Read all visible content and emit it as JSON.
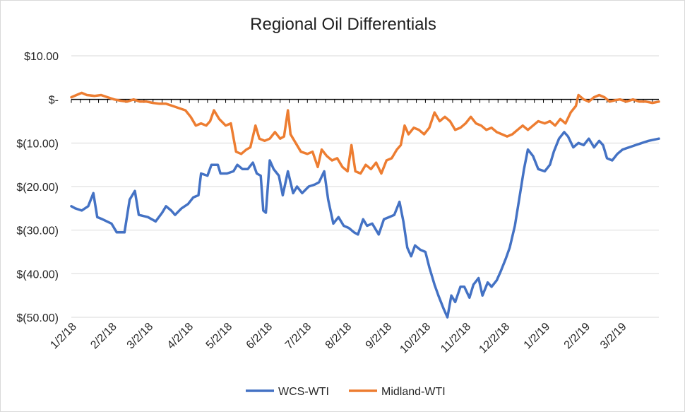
{
  "chart_data": {
    "type": "line",
    "title": "Regional Oil Differentials",
    "xlabel": "",
    "ylabel": "",
    "ylim": [
      -50,
      10
    ],
    "y_ticks": [
      {
        "value": 10,
        "label": "$10.00"
      },
      {
        "value": 0,
        "label": "$-"
      },
      {
        "value": -10,
        "label": "$(10.00)"
      },
      {
        "value": -20,
        "label": "$(20.00)"
      },
      {
        "value": -30,
        "label": "$(30.00)"
      },
      {
        "value": -40,
        "label": "$(40.00)"
      },
      {
        "value": -50,
        "label": "$(50.00)"
      }
    ],
    "x_tick_labels": [
      "1/2/18",
      "2/2/18",
      "3/2/18",
      "4/2/18",
      "5/2/18",
      "6/2/18",
      "7/2/18",
      "8/2/18",
      "9/2/18",
      "10/2/18",
      "11/2/18",
      "12/2/18",
      "1/2/19",
      "2/2/19",
      "3/2/19"
    ],
    "x_tick_dates": [
      "2018-01-02",
      "2018-02-02",
      "2018-03-02",
      "2018-04-02",
      "2018-05-02",
      "2018-06-02",
      "2018-07-02",
      "2018-08-02",
      "2018-09-02",
      "2018-10-02",
      "2018-11-02",
      "2018-12-02",
      "2019-01-02",
      "2019-02-02",
      "2019-03-02"
    ],
    "xlim": [
      "2018-01-02",
      "2019-03-31"
    ],
    "grid": "horizontal",
    "legend": "bottom",
    "series": [
      {
        "name": "WCS-WTI",
        "color": "#4472c4",
        "points": [
          [
            "2018-01-02",
            -24.5
          ],
          [
            "2018-01-05",
            -25
          ],
          [
            "2018-01-10",
            -25.5
          ],
          [
            "2018-01-15",
            -24.5
          ],
          [
            "2018-01-19",
            -21.5
          ],
          [
            "2018-01-22",
            -27
          ],
          [
            "2018-01-26",
            -27.5
          ],
          [
            "2018-02-02",
            -28.5
          ],
          [
            "2018-02-06",
            -30.5
          ],
          [
            "2018-02-12",
            -30.5
          ],
          [
            "2018-02-16",
            -23
          ],
          [
            "2018-02-20",
            -21
          ],
          [
            "2018-02-23",
            -26.5
          ],
          [
            "2018-03-02",
            -27
          ],
          [
            "2018-03-08",
            -28
          ],
          [
            "2018-03-13",
            -26
          ],
          [
            "2018-03-16",
            -24.5
          ],
          [
            "2018-03-20",
            -25.5
          ],
          [
            "2018-03-23",
            -26.5
          ],
          [
            "2018-03-28",
            -25
          ],
          [
            "2018-04-02",
            -24
          ],
          [
            "2018-04-06",
            -22.5
          ],
          [
            "2018-04-10",
            -22
          ],
          [
            "2018-04-12",
            -17
          ],
          [
            "2018-04-17",
            -17.5
          ],
          [
            "2018-04-20",
            -15
          ],
          [
            "2018-04-25",
            -15
          ],
          [
            "2018-04-27",
            -17
          ],
          [
            "2018-05-02",
            -17
          ],
          [
            "2018-05-07",
            -16.5
          ],
          [
            "2018-05-10",
            -15
          ],
          [
            "2018-05-14",
            -16
          ],
          [
            "2018-05-18",
            -16
          ],
          [
            "2018-05-22",
            -14.5
          ],
          [
            "2018-05-25",
            -17
          ],
          [
            "2018-05-28",
            -17.5
          ],
          [
            "2018-05-30",
            -25.5
          ],
          [
            "2018-06-01",
            -26
          ],
          [
            "2018-06-04",
            -14
          ],
          [
            "2018-06-07",
            -16
          ],
          [
            "2018-06-11",
            -17.5
          ],
          [
            "2018-06-14",
            -22
          ],
          [
            "2018-06-18",
            -16.5
          ],
          [
            "2018-06-22",
            -21.5
          ],
          [
            "2018-06-25",
            -20
          ],
          [
            "2018-06-29",
            -21.5
          ],
          [
            "2018-07-04",
            -20
          ],
          [
            "2018-07-09",
            -19.5
          ],
          [
            "2018-07-12",
            -19
          ],
          [
            "2018-07-16",
            -16.5
          ],
          [
            "2018-07-19",
            -23
          ],
          [
            "2018-07-23",
            -28.5
          ],
          [
            "2018-07-27",
            -27
          ],
          [
            "2018-07-31",
            -29
          ],
          [
            "2018-08-04",
            -29.5
          ],
          [
            "2018-08-08",
            -30.5
          ],
          [
            "2018-08-11",
            -31
          ],
          [
            "2018-08-15",
            -27.5
          ],
          [
            "2018-08-18",
            -29
          ],
          [
            "2018-08-22",
            -28.5
          ],
          [
            "2018-08-27",
            -31
          ],
          [
            "2018-08-31",
            -27.5
          ],
          [
            "2018-09-04",
            -27
          ],
          [
            "2018-09-08",
            -26.5
          ],
          [
            "2018-09-12",
            -23.5
          ],
          [
            "2018-09-15",
            -28
          ],
          [
            "2018-09-18",
            -34
          ],
          [
            "2018-09-21",
            -36
          ],
          [
            "2018-09-24",
            -33.5
          ],
          [
            "2018-09-28",
            -34.5
          ],
          [
            "2018-10-02",
            -35
          ],
          [
            "2018-10-05",
            -38.5
          ],
          [
            "2018-10-09",
            -42.5
          ],
          [
            "2018-10-12",
            -45
          ],
          [
            "2018-10-16",
            -48
          ],
          [
            "2018-10-19",
            -50
          ],
          [
            "2018-10-22",
            -45
          ],
          [
            "2018-10-25",
            -46.5
          ],
          [
            "2018-10-29",
            -43
          ],
          [
            "2018-11-01",
            -43
          ],
          [
            "2018-11-05",
            -45.5
          ],
          [
            "2018-11-08",
            -42.5
          ],
          [
            "2018-11-12",
            -41
          ],
          [
            "2018-11-15",
            -45
          ],
          [
            "2018-11-19",
            -42
          ],
          [
            "2018-11-22",
            -43
          ],
          [
            "2018-11-26",
            -41.5
          ],
          [
            "2018-11-29",
            -39.5
          ],
          [
            "2018-12-03",
            -36.5
          ],
          [
            "2018-12-06",
            -34
          ],
          [
            "2018-12-10",
            -29
          ],
          [
            "2018-12-13",
            -23.5
          ],
          [
            "2018-12-17",
            -16
          ],
          [
            "2018-12-20",
            -11.5
          ],
          [
            "2018-12-24",
            -13
          ],
          [
            "2018-12-28",
            -16
          ],
          [
            "2019-01-02",
            -16.5
          ],
          [
            "2019-01-06",
            -15
          ],
          [
            "2019-01-09",
            -12
          ],
          [
            "2019-01-13",
            -9
          ],
          [
            "2019-01-17",
            -7.5
          ],
          [
            "2019-01-20",
            -8.5
          ],
          [
            "2019-01-24",
            -11
          ],
          [
            "2019-01-28",
            -10
          ],
          [
            "2019-02-01",
            -10.5
          ],
          [
            "2019-02-05",
            -9
          ],
          [
            "2019-02-09",
            -11
          ],
          [
            "2019-02-13",
            -9.5
          ],
          [
            "2019-02-16",
            -10.5
          ],
          [
            "2019-02-19",
            -13.5
          ],
          [
            "2019-02-23",
            -14
          ],
          [
            "2019-02-27",
            -12.5
          ],
          [
            "2019-03-03",
            -11.5
          ],
          [
            "2019-03-08",
            -11
          ],
          [
            "2019-03-13",
            -10.5
          ],
          [
            "2019-03-18",
            -10
          ],
          [
            "2019-03-23",
            -9.5
          ],
          [
            "2019-03-31",
            -9
          ]
        ]
      },
      {
        "name": "Midland-WTI",
        "color": "#ed7d31",
        "points": [
          [
            "2018-01-02",
            0.5
          ],
          [
            "2018-01-06",
            1
          ],
          [
            "2018-01-10",
            1.5
          ],
          [
            "2018-01-14",
            1
          ],
          [
            "2018-01-20",
            0.8
          ],
          [
            "2018-01-25",
            1
          ],
          [
            "2018-01-30",
            0.5
          ],
          [
            "2018-02-04",
            0
          ],
          [
            "2018-02-09",
            -0.3
          ],
          [
            "2018-02-14",
            -0.5
          ],
          [
            "2018-02-19",
            0
          ],
          [
            "2018-02-24",
            -0.5
          ],
          [
            "2018-03-01",
            -0.5
          ],
          [
            "2018-03-06",
            -0.8
          ],
          [
            "2018-03-11",
            -1
          ],
          [
            "2018-03-16",
            -1
          ],
          [
            "2018-03-21",
            -1.5
          ],
          [
            "2018-03-26",
            -2
          ],
          [
            "2018-03-31",
            -2.5
          ],
          [
            "2018-04-04",
            -4
          ],
          [
            "2018-04-08",
            -6
          ],
          [
            "2018-04-12",
            -5.5
          ],
          [
            "2018-04-16",
            -6
          ],
          [
            "2018-04-19",
            -5
          ],
          [
            "2018-04-22",
            -2.5
          ],
          [
            "2018-04-26",
            -4.5
          ],
          [
            "2018-05-01",
            -6
          ],
          [
            "2018-05-05",
            -5.5
          ],
          [
            "2018-05-09",
            -12
          ],
          [
            "2018-05-13",
            -12.5
          ],
          [
            "2018-05-17",
            -11.5
          ],
          [
            "2018-05-20",
            -11
          ],
          [
            "2018-05-24",
            -6
          ],
          [
            "2018-05-27",
            -9
          ],
          [
            "2018-05-31",
            -9.5
          ],
          [
            "2018-06-04",
            -9
          ],
          [
            "2018-06-08",
            -7.5
          ],
          [
            "2018-06-12",
            -9
          ],
          [
            "2018-06-15",
            -8.5
          ],
          [
            "2018-06-18",
            -2.5
          ],
          [
            "2018-06-20",
            -8
          ],
          [
            "2018-06-24",
            -10
          ],
          [
            "2018-06-28",
            -12
          ],
          [
            "2018-07-03",
            -12.5
          ],
          [
            "2018-07-07",
            -12
          ],
          [
            "2018-07-11",
            -15.5
          ],
          [
            "2018-07-14",
            -11.5
          ],
          [
            "2018-07-18",
            -13
          ],
          [
            "2018-07-22",
            -14
          ],
          [
            "2018-07-26",
            -13.5
          ],
          [
            "2018-07-30",
            -15.5
          ],
          [
            "2018-08-03",
            -16.5
          ],
          [
            "2018-08-06",
            -10.5
          ],
          [
            "2018-08-09",
            -16.5
          ],
          [
            "2018-08-13",
            -17
          ],
          [
            "2018-08-17",
            -15
          ],
          [
            "2018-08-21",
            -16
          ],
          [
            "2018-08-25",
            -14.5
          ],
          [
            "2018-08-29",
            -17
          ],
          [
            "2018-09-02",
            -14
          ],
          [
            "2018-09-06",
            -13.5
          ],
          [
            "2018-09-10",
            -11.5
          ],
          [
            "2018-09-13",
            -10.5
          ],
          [
            "2018-09-16",
            -6
          ],
          [
            "2018-09-19",
            -8
          ],
          [
            "2018-09-23",
            -6.5
          ],
          [
            "2018-09-27",
            -7
          ],
          [
            "2018-10-01",
            -8
          ],
          [
            "2018-10-05",
            -6.5
          ],
          [
            "2018-10-09",
            -3
          ],
          [
            "2018-10-13",
            -5
          ],
          [
            "2018-10-17",
            -4
          ],
          [
            "2018-10-21",
            -5
          ],
          [
            "2018-10-25",
            -7
          ],
          [
            "2018-10-29",
            -6.5
          ],
          [
            "2018-11-02",
            -5.5
          ],
          [
            "2018-11-06",
            -4
          ],
          [
            "2018-11-10",
            -5.5
          ],
          [
            "2018-11-14",
            -6
          ],
          [
            "2018-11-18",
            -7
          ],
          [
            "2018-11-22",
            -6.5
          ],
          [
            "2018-11-26",
            -7.5
          ],
          [
            "2018-11-30",
            -8
          ],
          [
            "2018-12-04",
            -8.5
          ],
          [
            "2018-12-08",
            -8
          ],
          [
            "2018-12-12",
            -7
          ],
          [
            "2018-12-16",
            -6
          ],
          [
            "2018-12-20",
            -7
          ],
          [
            "2018-12-24",
            -6
          ],
          [
            "2018-12-28",
            -5
          ],
          [
            "2019-01-02",
            -5.5
          ],
          [
            "2019-01-06",
            -5
          ],
          [
            "2019-01-10",
            -6
          ],
          [
            "2019-01-14",
            -4.5
          ],
          [
            "2019-01-18",
            -5.5
          ],
          [
            "2019-01-22",
            -3
          ],
          [
            "2019-01-26",
            -1.5
          ],
          [
            "2019-01-28",
            1
          ],
          [
            "2019-02-01",
            0
          ],
          [
            "2019-02-05",
            -0.5
          ],
          [
            "2019-02-09",
            0.5
          ],
          [
            "2019-02-13",
            1
          ],
          [
            "2019-02-17",
            0.5
          ],
          [
            "2019-02-21",
            -0.5
          ],
          [
            "2019-02-25",
            -0.2
          ],
          [
            "2019-03-01",
            0
          ],
          [
            "2019-03-06",
            -0.5
          ],
          [
            "2019-03-11",
            0
          ],
          [
            "2019-03-16",
            -0.5
          ],
          [
            "2019-03-21",
            -0.5
          ],
          [
            "2019-03-26",
            -0.8
          ],
          [
            "2019-03-31",
            -0.5
          ]
        ]
      }
    ]
  }
}
